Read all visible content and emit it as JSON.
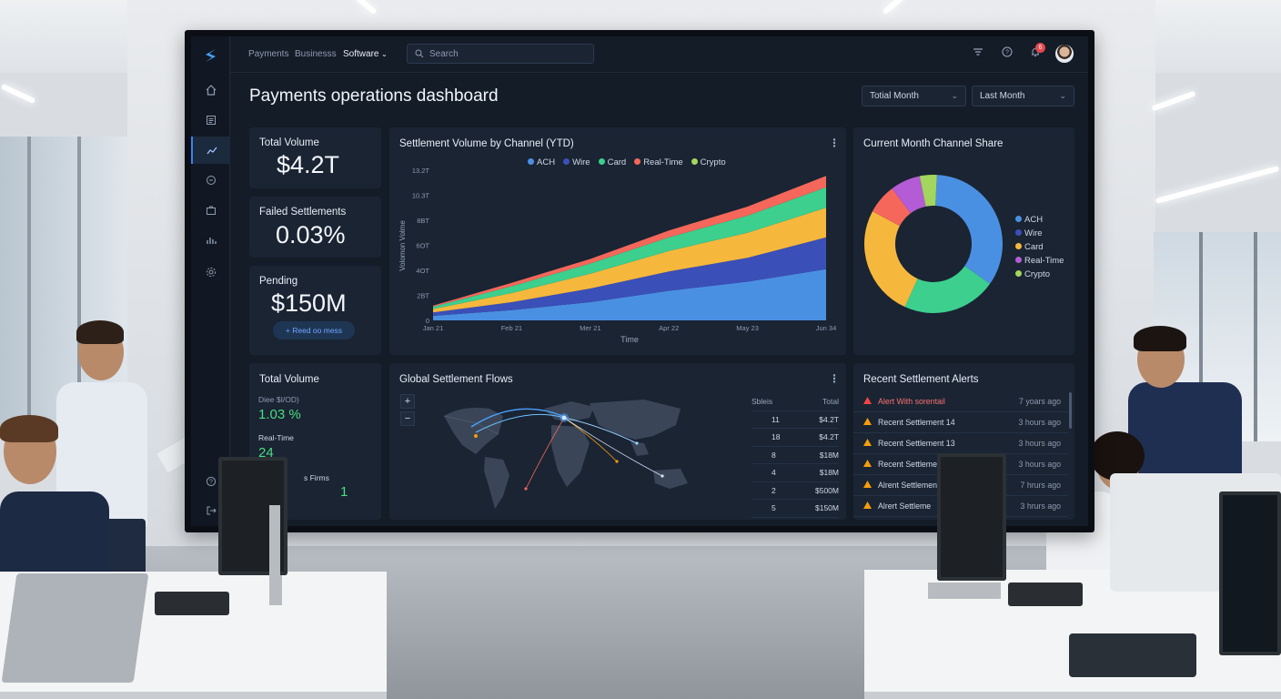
{
  "colors": {
    "ach": "#4a90e2",
    "wire": "#3b4fb8",
    "card": "#3ccf8e",
    "real_time": "#f4675a",
    "crypto": "#a3d65c",
    "card_yellow": "#f5b83d",
    "accent": "#3b82f6",
    "alert_red": "#f87171",
    "warn_orange": "#f59e0b"
  },
  "topbar": {
    "nav": [
      "Payments",
      "Businesss",
      "Software"
    ],
    "active_nav": "Software",
    "search_placeholder": "Search",
    "notification_count": "6"
  },
  "header": {
    "title": "Payments operations dashboard",
    "filter1": "Totial Month",
    "filter2": "Last Month"
  },
  "kpis": {
    "total_volume": {
      "label": "Total Volume",
      "value": "$4.2T"
    },
    "failed": {
      "label": "Failed Settlements",
      "value": "0.03%"
    },
    "pending": {
      "label": "Pending",
      "value": "$150M",
      "action": "Reed oo mess"
    }
  },
  "settlement_chart": {
    "title": "Settlement Volume by Channel (YTD)",
    "legend": [
      "ACH",
      "Wire",
      "Card",
      "Real-Time",
      "Crypto"
    ],
    "y_ticks": [
      "13.2T",
      "10.3T",
      "8BT",
      "6OT",
      "4OT",
      "2BT",
      "0"
    ],
    "x_ticks": [
      "Jan 21",
      "Feb 21",
      "Mer 21",
      "Apr 22",
      "May 23",
      "Jun 34"
    ],
    "ylabel": "Volomon Volme",
    "xlabel": "Time"
  },
  "chart_data": {
    "type": "area",
    "title": "Settlement Volume by Channel (YTD)",
    "xlabel": "Time",
    "ylabel": "Volomon Volme",
    "categories": [
      "Jan 21",
      "Feb 21",
      "Mer 21",
      "Apr 22",
      "May 23",
      "Jun 34"
    ],
    "ylim": [
      0,
      13.2
    ],
    "stacked": true,
    "series": [
      {
        "name": "ACH",
        "values": [
          0.4,
          0.9,
          1.6,
          2.6,
          3.4,
          4.5
        ]
      },
      {
        "name": "Wire",
        "values": [
          0.3,
          0.7,
          1.2,
          1.7,
          2.1,
          2.8
        ]
      },
      {
        "name": "Card",
        "values": [
          0.3,
          0.8,
          1.3,
          1.8,
          2.2,
          2.6
        ]
      },
      {
        "name": "Real-Time",
        "values": [
          0.2,
          0.6,
          0.9,
          1.2,
          1.5,
          1.8
        ]
      },
      {
        "name": "Crypto",
        "values": [
          0.1,
          0.3,
          0.4,
          0.6,
          0.8,
          1.0
        ]
      }
    ]
  },
  "donut": {
    "title": "Current Month Channel Share",
    "legend": [
      "ACH",
      "Wire",
      "Card",
      "Real-Time",
      "Crypto"
    ],
    "shares": [
      0.35,
      0.22,
      0.28,
      0.08,
      0.05
    ]
  },
  "kpi_bottom": {
    "title": "Total Volume",
    "sub_label": "Diee $I/OD)",
    "sub_value": "1.03 %",
    "rt_label": "Real-Time",
    "rt_value": "24",
    "firms_label": "s Firms",
    "firms_value": "1"
  },
  "map": {
    "title": "Global Settlement Flows",
    "table_headers": [
      "Sbleis",
      "Total"
    ],
    "rows": [
      [
        "11",
        "$4.2T"
      ],
      [
        "18",
        "$4.2T"
      ],
      [
        "8",
        "$18M"
      ],
      [
        "4",
        "$18M"
      ],
      [
        "2",
        "$500M"
      ],
      [
        "5",
        "$150M"
      ]
    ]
  },
  "alerts": {
    "title": "Recent Settlement Alerts",
    "items": [
      {
        "text": "Alert With sorentail",
        "time": "7 yoars ago"
      },
      {
        "text": "Recent Settlement 14",
        "time": "3 hours ago"
      },
      {
        "text": "Recent Settlement 13",
        "time": "3 hours ago"
      },
      {
        "text": "Recent Settlemen",
        "time": "3 hours ago"
      },
      {
        "text": "Alrent Settlement",
        "time": "7 hrurs ago"
      },
      {
        "text": "Alrert Settleme",
        "time": "3 hrurs ago"
      }
    ]
  }
}
